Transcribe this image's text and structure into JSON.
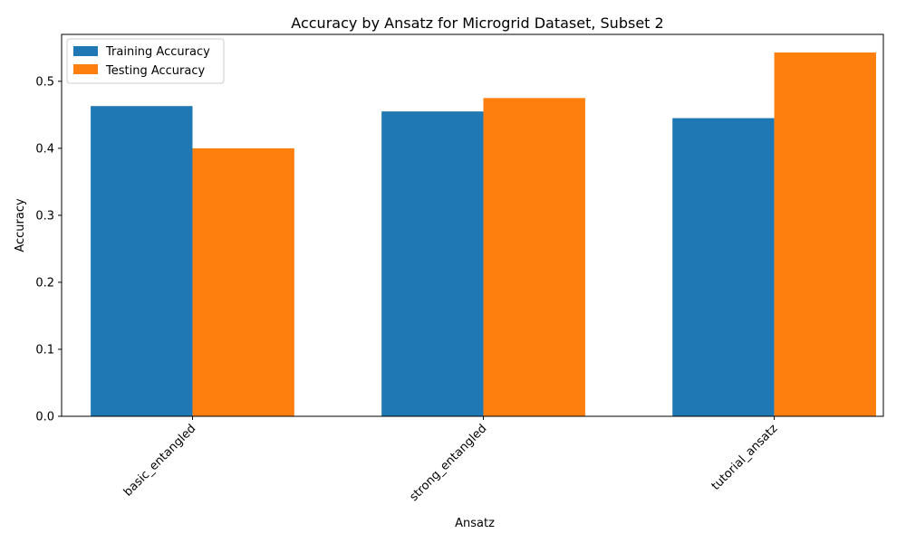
{
  "chart_data": {
    "type": "bar",
    "title": "Accuracy by Ansatz for Microgrid Dataset, Subset 2",
    "xlabel": "Ansatz",
    "ylabel": "Accuracy",
    "categories": [
      "basic_entangled",
      "strong_entangled",
      "tutorial_ansatz"
    ],
    "series": [
      {
        "name": "Training Accuracy",
        "color": "#1f77b4",
        "values": [
          0.463,
          0.455,
          0.445
        ]
      },
      {
        "name": "Testing Accuracy",
        "color": "#ff7f0e",
        "values": [
          0.4,
          0.475,
          0.543
        ]
      }
    ],
    "ylim": [
      0,
      0.57
    ],
    "yticks": [
      "0.0",
      "0.1",
      "0.2",
      "0.3",
      "0.4",
      "0.5"
    ],
    "grid": false,
    "legend_position": "top-left",
    "xtick_rotation_deg": 45
  }
}
